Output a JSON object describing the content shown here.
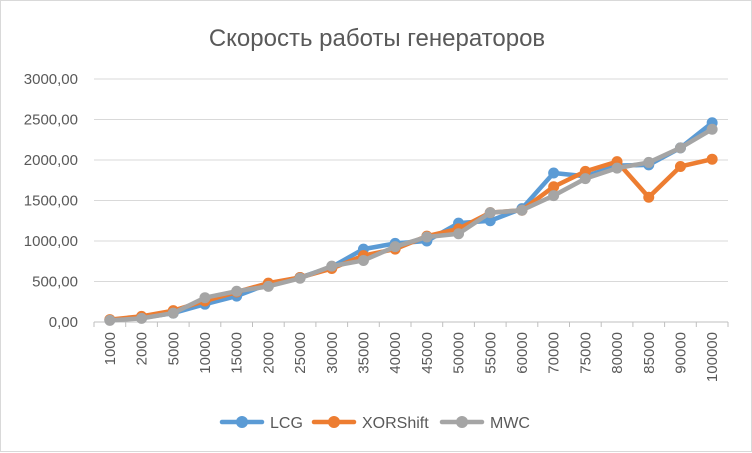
{
  "chart_data": {
    "type": "line",
    "title": "Скорость работы генераторов",
    "xlabel": "",
    "ylabel": "",
    "categories": [
      "1000",
      "2000",
      "5000",
      "10000",
      "15000",
      "20000",
      "25000",
      "30000",
      "35000",
      "40000",
      "45000",
      "50000",
      "55000",
      "60000",
      "70000",
      "75000",
      "80000",
      "85000",
      "90000",
      "100000"
    ],
    "y_tick_labels": [
      "0,00",
      "500,00",
      "1000,00",
      "1500,00",
      "2000,00",
      "2500,00",
      "3000,00"
    ],
    "ylim": [
      0,
      3000
    ],
    "grid": true,
    "legend_position": "bottom",
    "series": [
      {
        "name": "LCG",
        "color": "#5b9bd5",
        "values": [
          25,
          50,
          110,
          220,
          320,
          470,
          550,
          680,
          900,
          970,
          1000,
          1220,
          1250,
          1400,
          1840,
          1800,
          1930,
          1940,
          2150,
          2460
        ]
      },
      {
        "name": "XORShift",
        "color": "#ed7d31",
        "values": [
          30,
          70,
          140,
          260,
          370,
          480,
          550,
          660,
          820,
          900,
          1060,
          1150,
          1350,
          1380,
          1670,
          1860,
          1980,
          1540,
          1920,
          2010
        ]
      },
      {
        "name": "MWC",
        "color": "#a5a5a5",
        "values": [
          20,
          45,
          110,
          300,
          380,
          440,
          540,
          690,
          760,
          930,
          1050,
          1090,
          1350,
          1380,
          1560,
          1770,
          1900,
          1970,
          2150,
          2380
        ]
      }
    ]
  }
}
